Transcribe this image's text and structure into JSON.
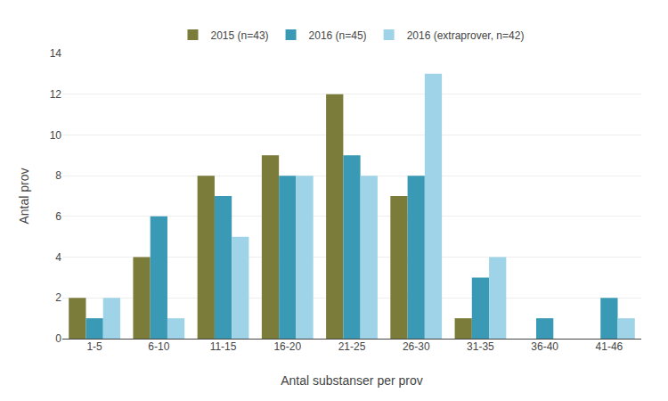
{
  "chart_data": {
    "type": "bar",
    "xlabel": "Antal substanser per prov",
    "ylabel": "Antal prov",
    "categories": [
      "1-5",
      "6-10",
      "11-15",
      "16-20",
      "21-25",
      "26-30",
      "31-35",
      "36-40",
      "41-46"
    ],
    "series": [
      {
        "name": "2015 (n=43)",
        "color": "#7b7b3a",
        "values": [
          2,
          4,
          8,
          9,
          12,
          7,
          1,
          0,
          0
        ]
      },
      {
        "name": "2016 (n=45)",
        "color": "#3a9ab5",
        "values": [
          1,
          6,
          7,
          8,
          9,
          8,
          3,
          1,
          2
        ]
      },
      {
        "name": "2016 (extraprover, n=42)",
        "color": "#9fd4e8",
        "values": [
          2,
          1,
          5,
          8,
          8,
          13,
          4,
          0,
          1
        ]
      }
    ],
    "ylim": [
      0,
      14
    ],
    "yticks": [
      0,
      2,
      4,
      6,
      8,
      10,
      12,
      14
    ],
    "grid": true,
    "legend": "top"
  }
}
